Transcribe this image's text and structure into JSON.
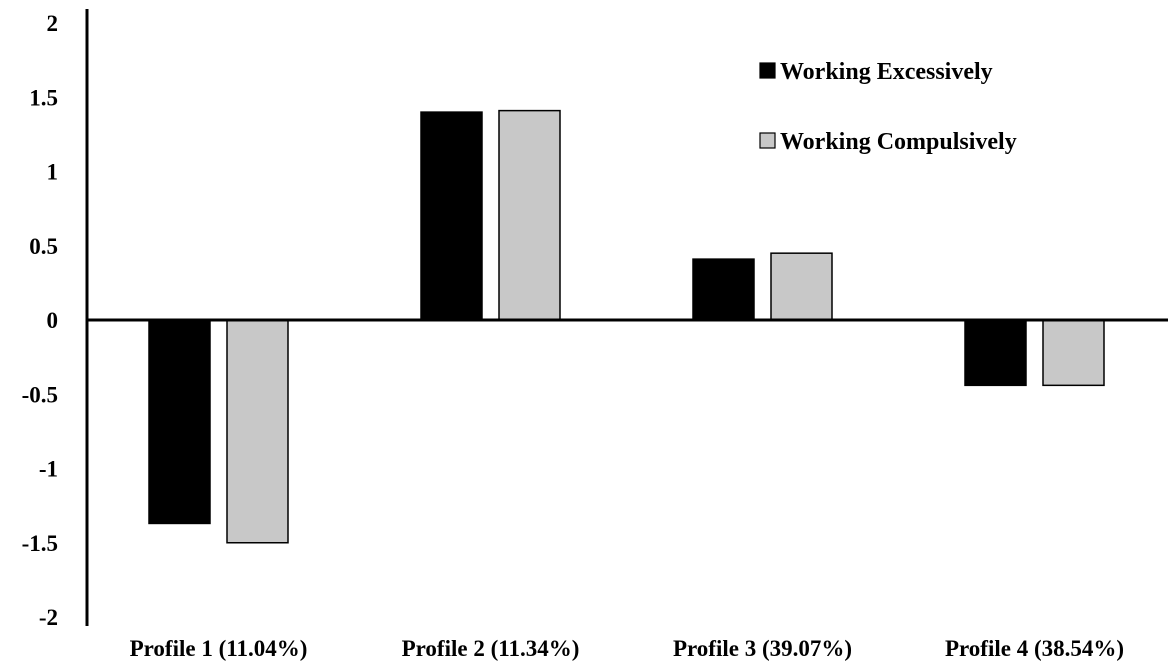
{
  "chart_data": {
    "type": "bar",
    "title": "",
    "xlabel": "",
    "ylabel": "",
    "categories": [
      "Profile 1 (11.04%)",
      "Profile 2 (11.34%)",
      "Profile 3 (39.07%)",
      "Profile 4 (38.54%)"
    ],
    "series": [
      {
        "name": "Working Excessively",
        "color": "#000000",
        "values": [
          -1.37,
          1.4,
          0.41,
          -0.44
        ]
      },
      {
        "name": "Working Compulsively",
        "color": "#c8c8c8",
        "values": [
          -1.5,
          1.41,
          0.45,
          -0.44
        ]
      }
    ],
    "ylim": [
      -2,
      2
    ],
    "yticks": [
      "2",
      "1.5",
      "1",
      "0.5",
      "0",
      "-0.5",
      "-1",
      "-1.5",
      "-2"
    ],
    "ytick_values": [
      2,
      1.5,
      1,
      0.5,
      0,
      -0.5,
      -1,
      -1.5,
      -2
    ],
    "grid": false,
    "legend_position": "top-right"
  }
}
